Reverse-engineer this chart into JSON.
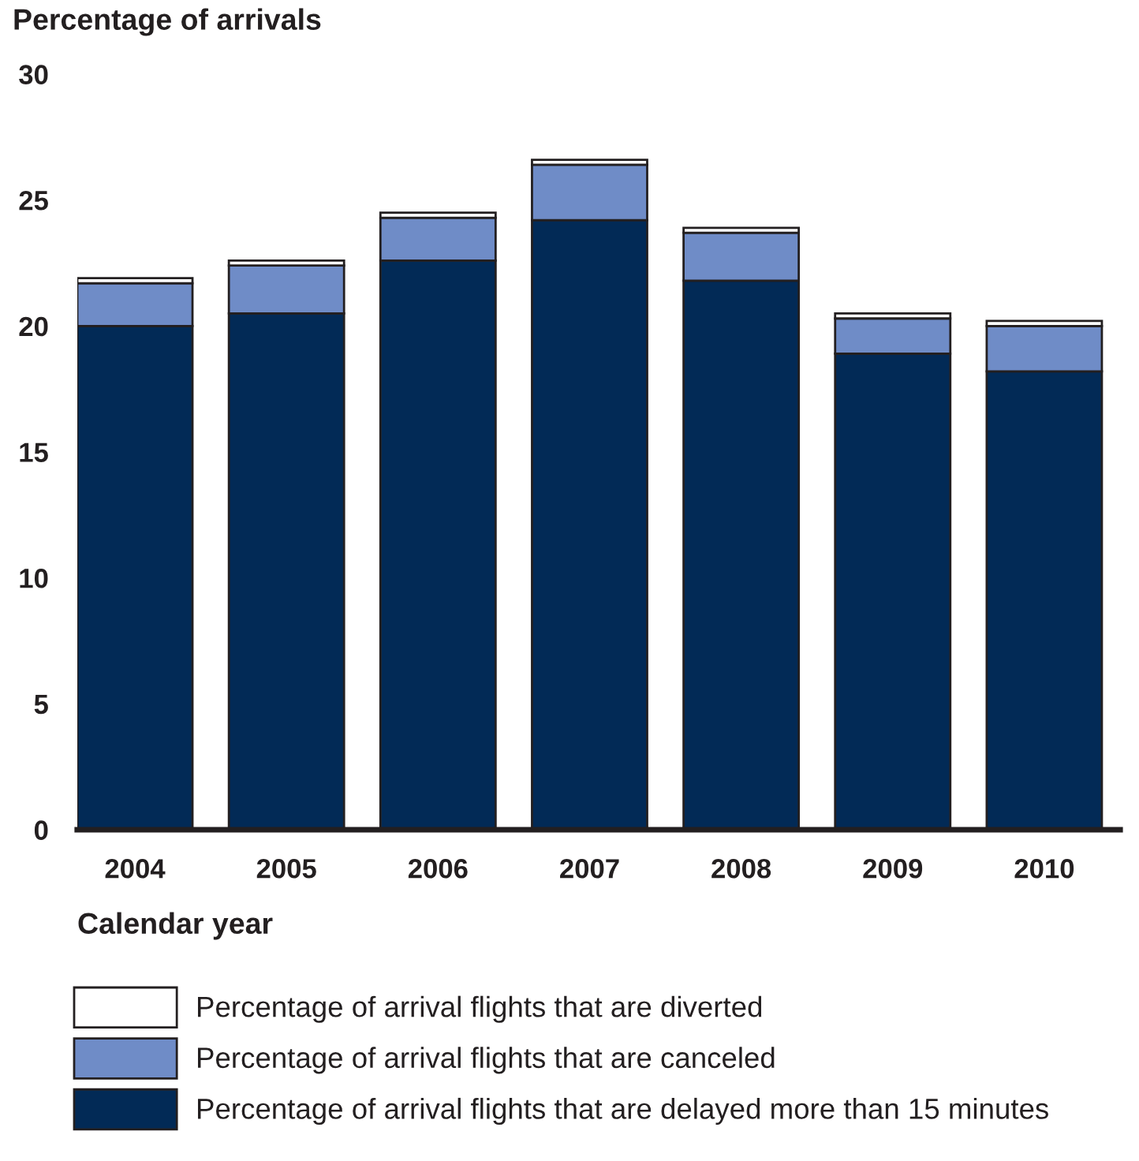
{
  "chart_data": {
    "type": "bar",
    "stacked": true,
    "ylabel": "Percentage of arrivals",
    "xlabel": "Calendar year",
    "categories": [
      "2004",
      "2005",
      "2006",
      "2007",
      "2008",
      "2009",
      "2010"
    ],
    "series": [
      {
        "name": "Percentage of arrival flights that are delayed more than 15 minutes",
        "color": "#022a56",
        "values": [
          20.0,
          20.5,
          22.6,
          24.2,
          21.8,
          18.9,
          18.2
        ]
      },
      {
        "name": "Percentage of arrival flights that are canceled",
        "color": "#6f8cc7",
        "values": [
          1.7,
          1.9,
          1.7,
          2.2,
          1.9,
          1.4,
          1.8
        ]
      },
      {
        "name": "Percentage of arrival flights that are diverted",
        "color": "#ffffff",
        "values": [
          0.2,
          0.2,
          0.2,
          0.2,
          0.2,
          0.2,
          0.2
        ]
      }
    ],
    "ylim": [
      0,
      30
    ],
    "yticks": [
      0,
      5,
      10,
      15,
      20,
      25,
      30
    ],
    "legend": "bottom"
  }
}
